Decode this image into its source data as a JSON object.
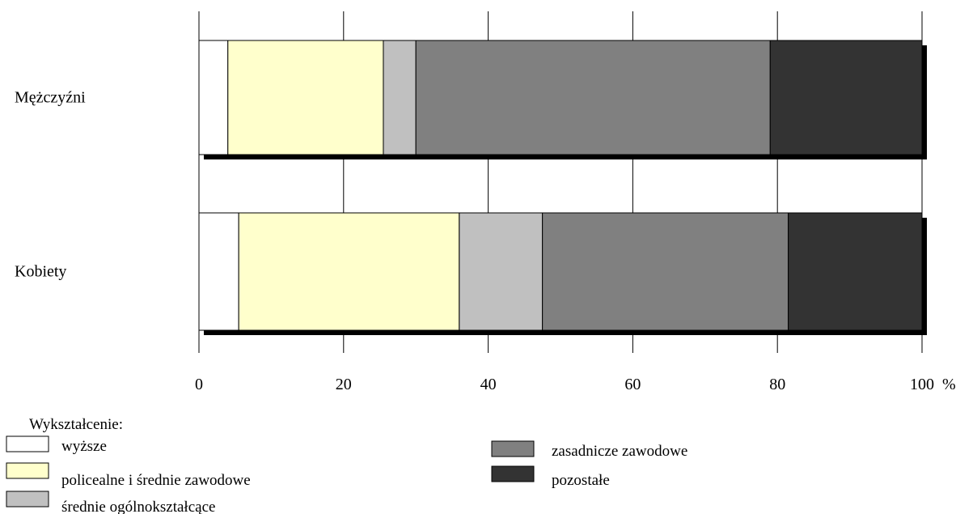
{
  "chart_data": {
    "type": "bar",
    "orientation": "horizontal",
    "stacked": true,
    "categories": [
      "Mężczyźni",
      "Kobiety"
    ],
    "series": [
      {
        "name": "wyższe",
        "values": [
          4.0,
          5.5
        ],
        "color": "#ffffff"
      },
      {
        "name": "policealne i średnie zawodowe",
        "values": [
          21.5,
          30.5
        ],
        "color": "#ffffcc"
      },
      {
        "name": "średnie ogólnokształcące",
        "values": [
          4.5,
          11.5
        ],
        "color": "#c0c0c0"
      },
      {
        "name": "zasadnicze zawodowe",
        "values": [
          49.0,
          34.0
        ],
        "color": "#808080"
      },
      {
        "name": "pozostałe",
        "values": [
          21.0,
          18.5
        ],
        "color": "#333333"
      }
    ],
    "x_ticks": [
      0,
      20,
      40,
      60,
      80,
      100
    ],
    "xlim": [
      0,
      100
    ],
    "x_unit": "%",
    "grid": true,
    "legend": {
      "title": "Wykształcenie:",
      "placement": "bottom-left"
    }
  }
}
